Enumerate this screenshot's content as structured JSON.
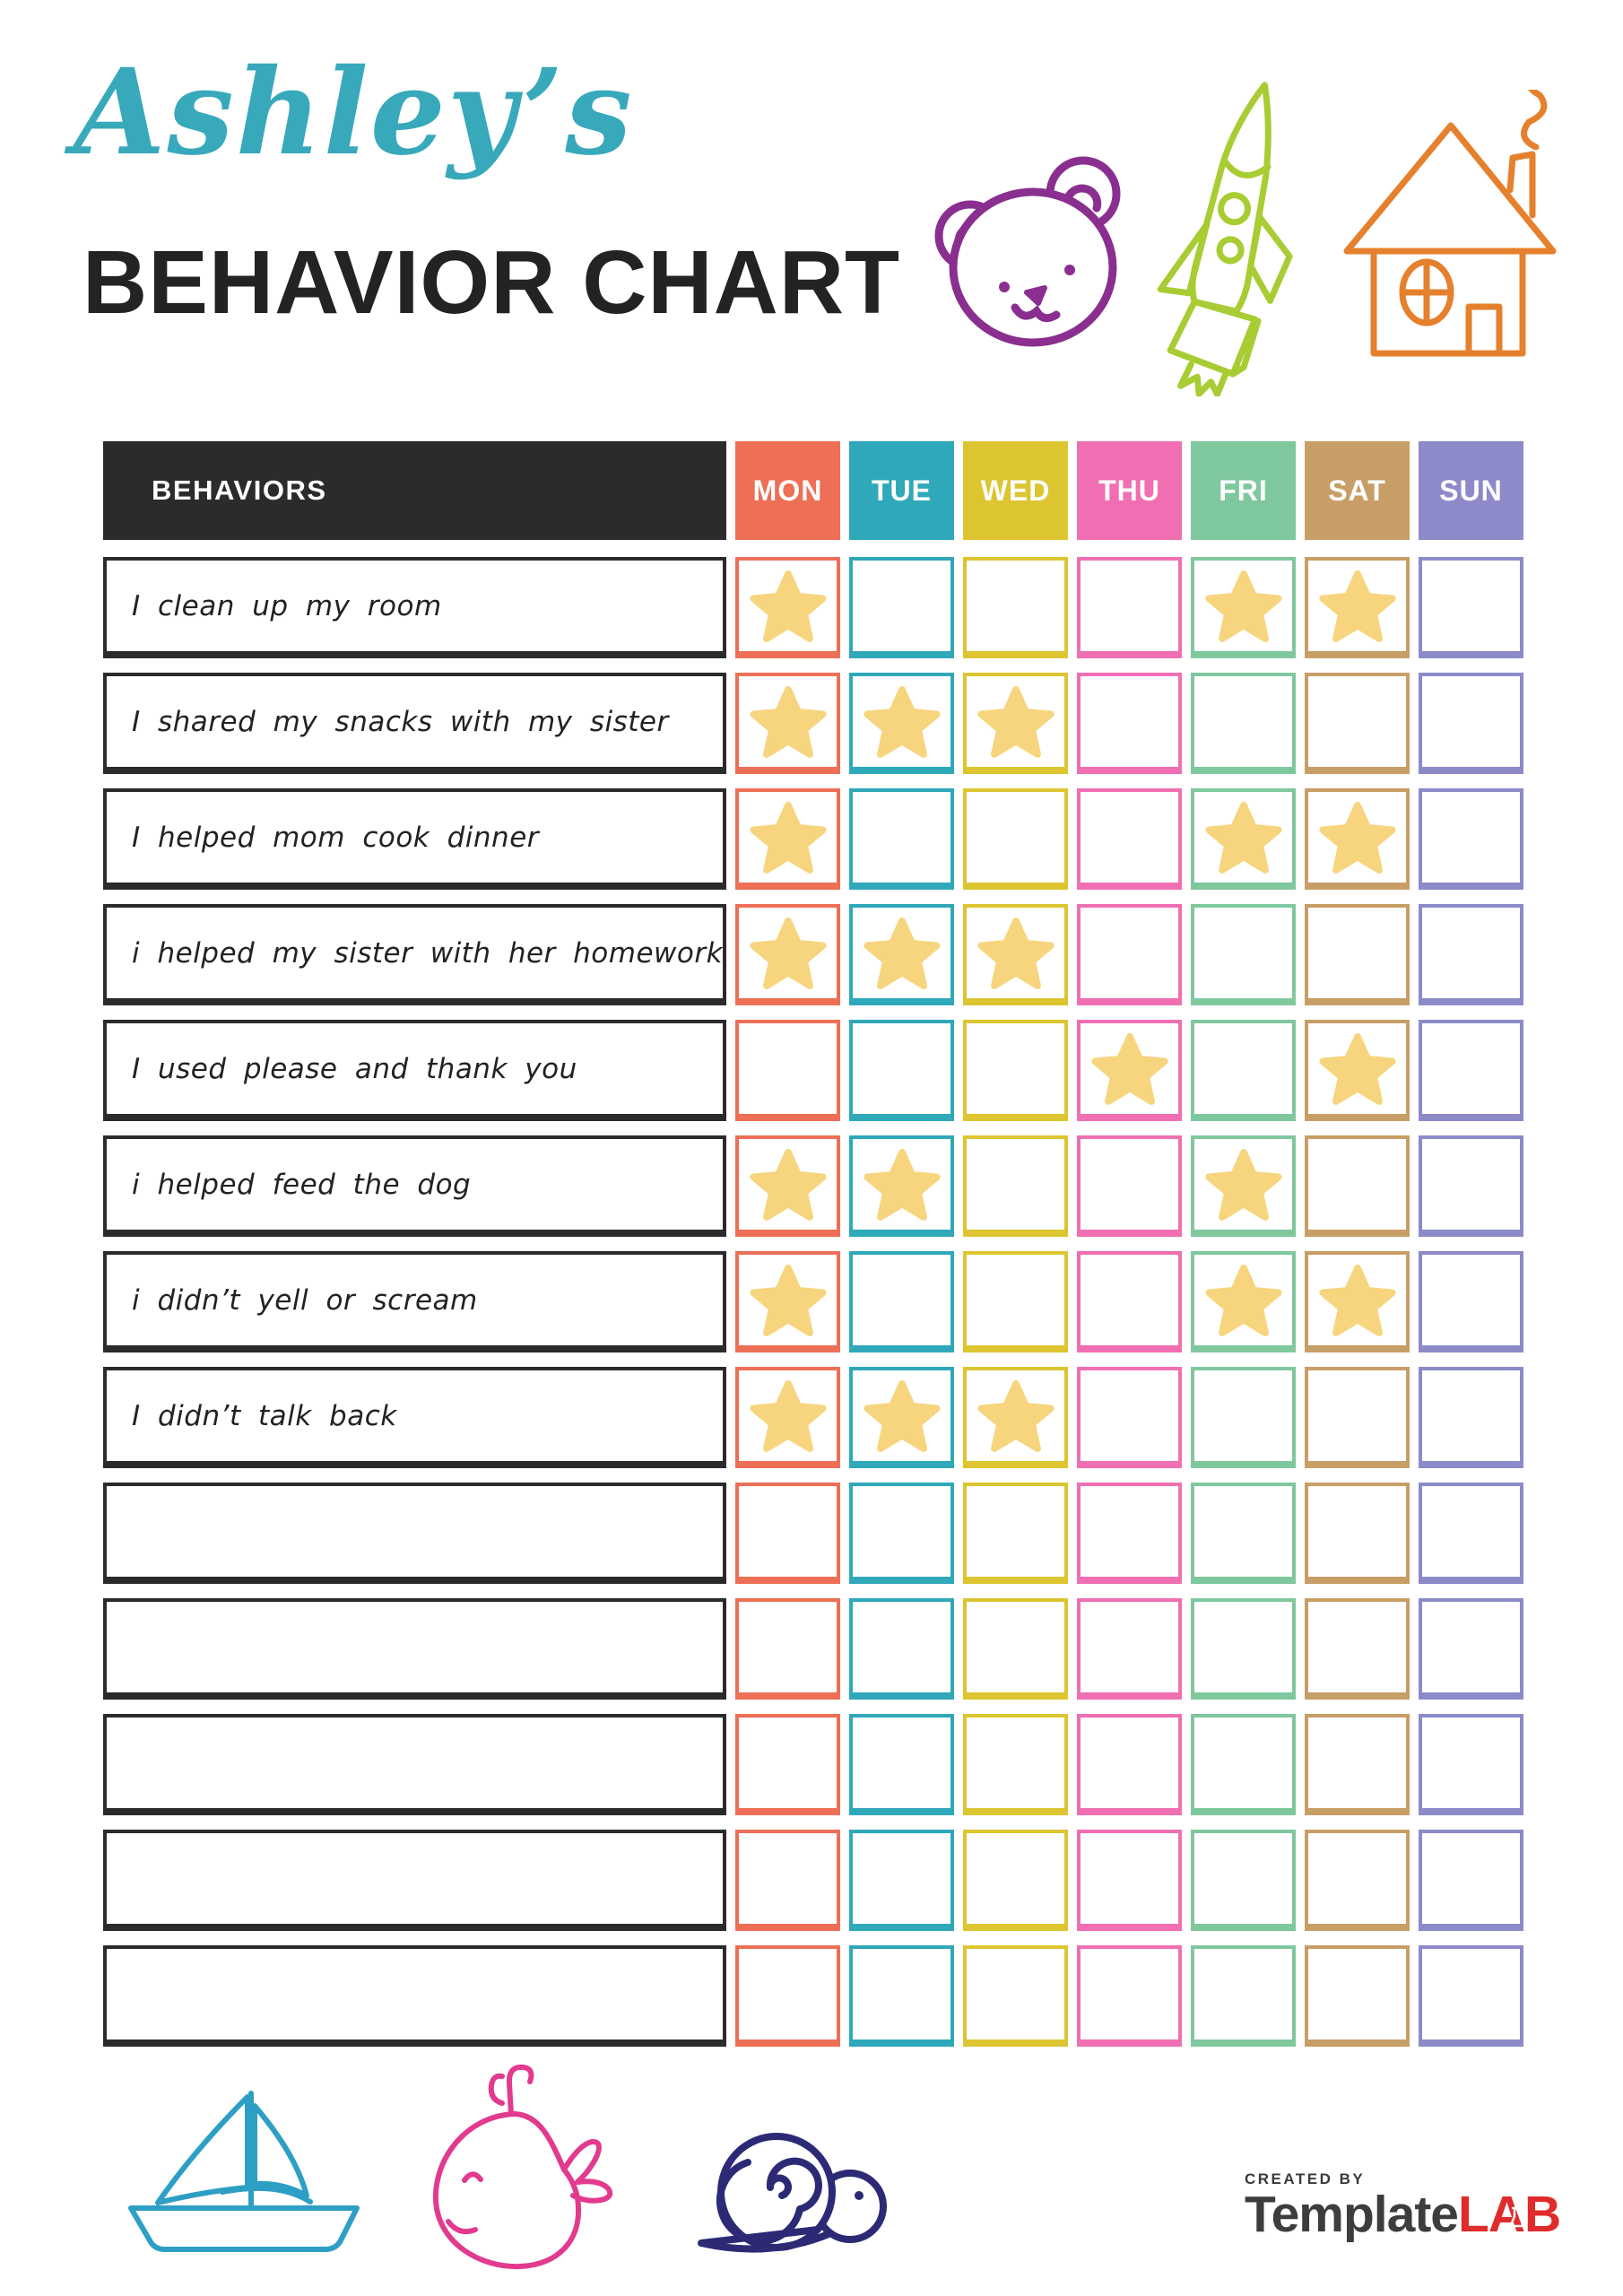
{
  "header": {
    "owner_name": "Ashley’s",
    "title": "BEHAVIOR CHART",
    "owner_color": "#38a9bb",
    "title_color": "#232323"
  },
  "doodles": {
    "bear_color": "#8a2f8f",
    "rocket_color": "#a8cc33",
    "house_color": "#e5802d",
    "boat_color": "#2e9fc4",
    "whale_color": "#e23a8e",
    "snail_color": "#2c2a75"
  },
  "table": {
    "behaviors_header": "BEHAVIORS",
    "days": [
      {
        "label": "MON",
        "color": "#ed6f56"
      },
      {
        "label": "TUE",
        "color": "#2fa8ba"
      },
      {
        "label": "WED",
        "color": "#dcc530"
      },
      {
        "label": "THU",
        "color": "#f06fb2"
      },
      {
        "label": "FRI",
        "color": "#7fc89e"
      },
      {
        "label": "SAT",
        "color": "#c89e67"
      },
      {
        "label": "SUN",
        "color": "#8c8ac8"
      }
    ],
    "star_color": "#f7d57e",
    "rows": [
      {
        "behavior": "I clean up my room",
        "stars": [
          1,
          0,
          0,
          0,
          1,
          1,
          0
        ]
      },
      {
        "behavior": "I shared my snacks with my sister",
        "stars": [
          1,
          1,
          1,
          0,
          0,
          0,
          0
        ]
      },
      {
        "behavior": "I helped mom cook dinner",
        "stars": [
          1,
          0,
          0,
          0,
          1,
          1,
          0
        ]
      },
      {
        "behavior": "i helped my sister with her homework",
        "stars": [
          1,
          1,
          1,
          0,
          0,
          0,
          0
        ]
      },
      {
        "behavior": "I used please and thank you",
        "stars": [
          0,
          0,
          0,
          1,
          0,
          1,
          0
        ]
      },
      {
        "behavior": "i helped feed the dog",
        "stars": [
          1,
          1,
          0,
          0,
          1,
          0,
          0
        ]
      },
      {
        "behavior": "i didn’t yell or scream",
        "stars": [
          1,
          0,
          0,
          0,
          1,
          1,
          0
        ]
      },
      {
        "behavior": "I didn’t talk back",
        "stars": [
          1,
          1,
          1,
          0,
          0,
          0,
          0
        ]
      },
      {
        "behavior": "",
        "stars": [
          0,
          0,
          0,
          0,
          0,
          0,
          0
        ]
      },
      {
        "behavior": "",
        "stars": [
          0,
          0,
          0,
          0,
          0,
          0,
          0
        ]
      },
      {
        "behavior": "",
        "stars": [
          0,
          0,
          0,
          0,
          0,
          0,
          0
        ]
      },
      {
        "behavior": "",
        "stars": [
          0,
          0,
          0,
          0,
          0,
          0,
          0
        ]
      },
      {
        "behavior": "",
        "stars": [
          0,
          0,
          0,
          0,
          0,
          0,
          0
        ]
      }
    ]
  },
  "footer": {
    "credit_label": "CREATED BY",
    "brand_primary": "Template",
    "brand_accent": "LAB"
  }
}
